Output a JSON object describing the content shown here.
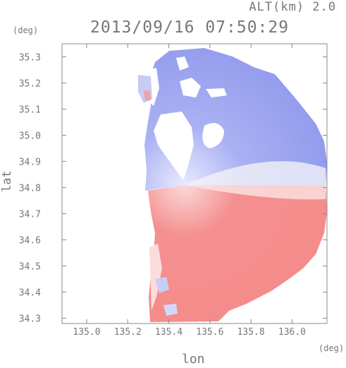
{
  "header": {
    "altitude": "ALT(km) 2.0",
    "timestamp": "2013/09/16 07:50:29"
  },
  "chart_data": {
    "type": "heatmap",
    "title": "2013/09/16 07:50:29",
    "subtitle": "ALT(km) 2.0",
    "xlabel": "lon",
    "ylabel": "lat",
    "x_unit": "(deg)",
    "y_unit": "(deg)",
    "xlim": [
      134.88,
      136.17
    ],
    "ylim": [
      34.28,
      35.35
    ],
    "x_ticks": [
      135.0,
      135.2,
      135.4,
      135.6,
      135.8,
      136.0
    ],
    "x_tick_labels": [
      "135.0",
      "135.2",
      "135.4",
      "135.6",
      "135.8",
      "136.0"
    ],
    "y_ticks": [
      34.3,
      34.4,
      34.5,
      34.6,
      34.7,
      34.8,
      34.9,
      35.0,
      35.1,
      35.2,
      35.3
    ],
    "y_tick_labels": [
      "34.3",
      "34.4",
      "34.5",
      "34.6",
      "34.7",
      "34.8",
      "34.9",
      "35.0",
      "35.1",
      "35.2",
      "35.3"
    ],
    "radar_center": {
      "lon": 135.52,
      "lat": 34.82
    },
    "colors": {
      "toward": "#8f99ee",
      "away": "#f58a8a",
      "near_zero": "#ffffff"
    },
    "regions": [
      {
        "name": "north-approaching",
        "color": "#9aa3f0",
        "lat_range": [
          34.82,
          35.35
        ]
      },
      {
        "name": "south-receding",
        "color": "#f58f8f",
        "lat_range": [
          34.28,
          34.82
        ]
      }
    ]
  }
}
